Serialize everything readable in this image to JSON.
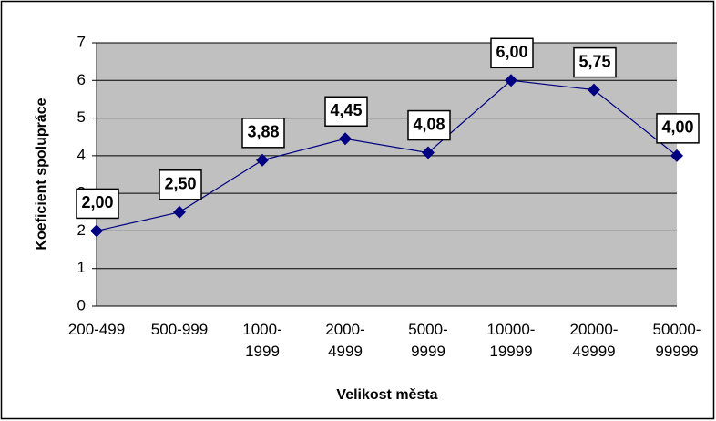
{
  "chart_data": {
    "type": "line",
    "x_label": "Velikost města",
    "y_label": "Koeficient spolupráce",
    "categories": [
      "200-499",
      "500-999",
      "1000-1999",
      "2000-4999",
      "5000-9999",
      "10000-19999",
      "20000-49999",
      "50000-99999"
    ],
    "series": [
      {
        "name": "Koeficient spolupráce",
        "color": "#000080",
        "values": [
          2.0,
          2.5,
          3.88,
          4.45,
          4.08,
          6.0,
          5.75,
          4.0
        ],
        "value_labels": [
          "2,00",
          "2,50",
          "3,88",
          "4,45",
          "4,08",
          "6,00",
          "5,75",
          "4,00"
        ]
      }
    ],
    "ylim": [
      0,
      7
    ],
    "yticks": [
      0,
      1,
      2,
      3,
      4,
      5,
      6,
      7
    ],
    "grid": true
  }
}
